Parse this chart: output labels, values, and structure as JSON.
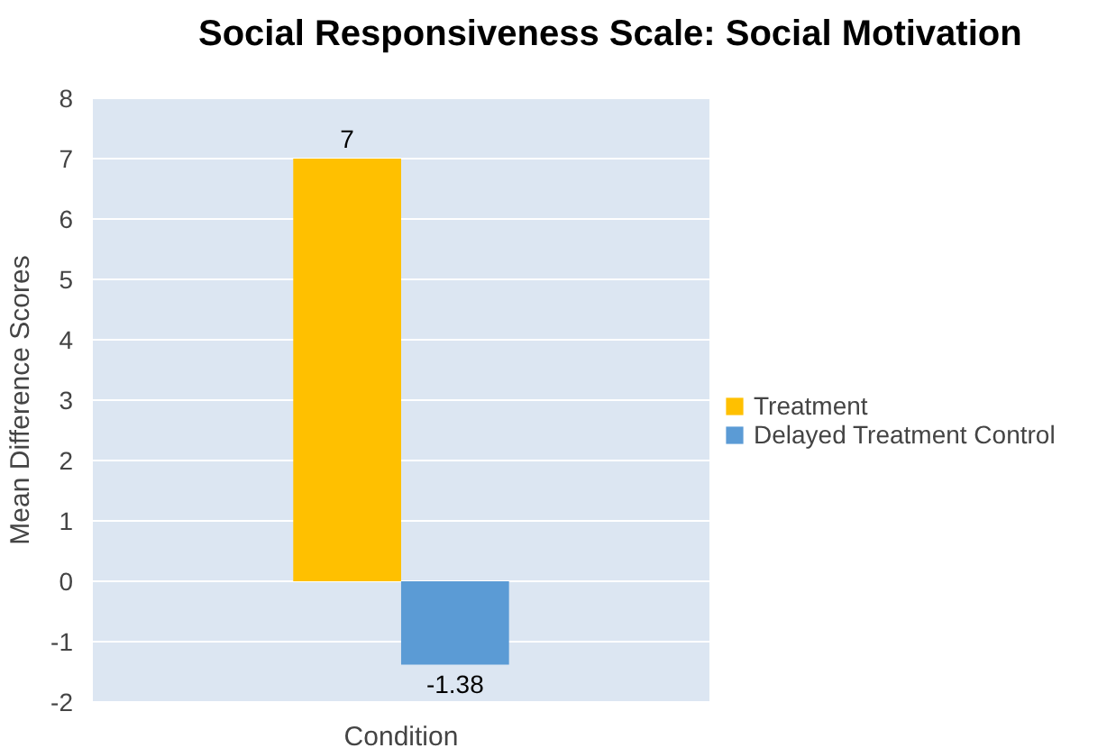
{
  "chart_data": {
    "type": "bar",
    "title": "Social Responsiveness Scale: Social Motivation",
    "ylabel": "Mean Difference Scores",
    "categories": [
      "Condition"
    ],
    "series": [
      {
        "name": "Treatment",
        "color": "#ffc000",
        "values": [
          7
        ]
      },
      {
        "name": "Delayed Treatment Control",
        "color": "#5b9bd5",
        "values": [
          -1.38
        ]
      }
    ],
    "ylim": [
      -2,
      8
    ],
    "yticks": [
      -2,
      -1,
      0,
      1,
      2,
      3,
      4,
      5,
      6,
      7,
      8
    ],
    "grid": "y",
    "legend": "right",
    "data_labels": true
  }
}
